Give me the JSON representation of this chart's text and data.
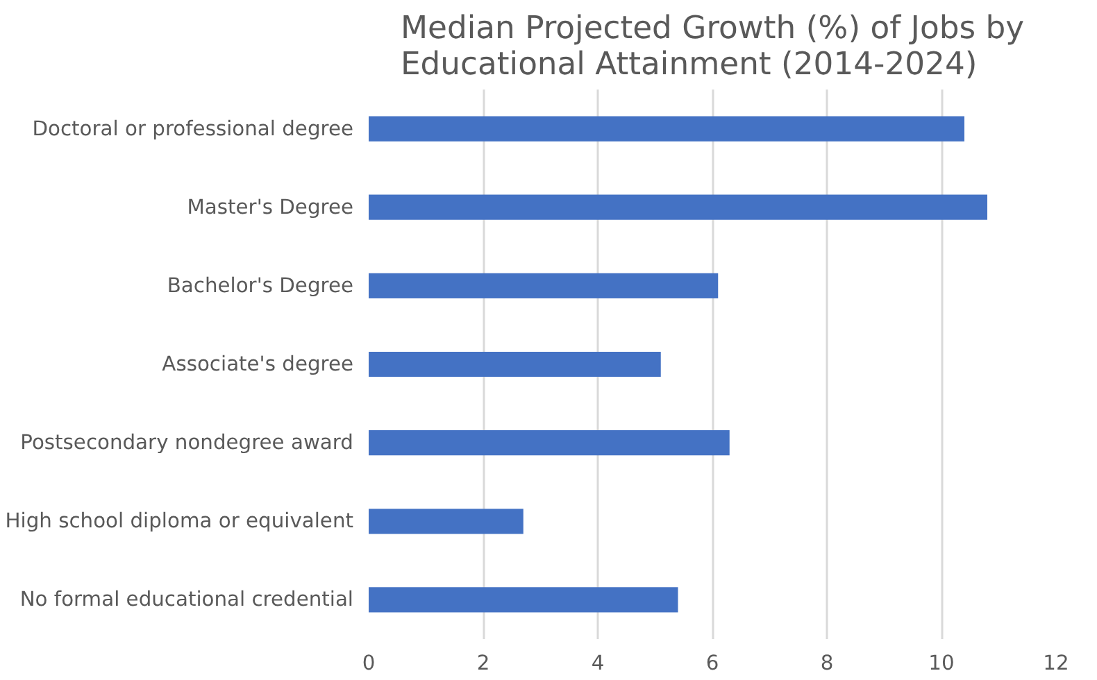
{
  "chart_data": {
    "type": "bar",
    "orientation": "horizontal",
    "title": "Median Projected Growth (%) of Jobs by\nEducational Attainment (2014-2024)",
    "categories": [
      "Doctoral or professional degree",
      "Master's Degree",
      "Bachelor's Degree",
      "Associate's degree",
      "Postsecondary nondegree award",
      "High school diploma or equivalent",
      "No formal educational credential"
    ],
    "values": [
      10.4,
      10.8,
      6.1,
      5.1,
      6.3,
      2.7,
      5.4
    ],
    "color": "#4472c4",
    "xlim": [
      0,
      12
    ],
    "xticks": [
      0,
      2,
      4,
      6,
      8,
      10,
      12
    ],
    "grid": "x"
  }
}
